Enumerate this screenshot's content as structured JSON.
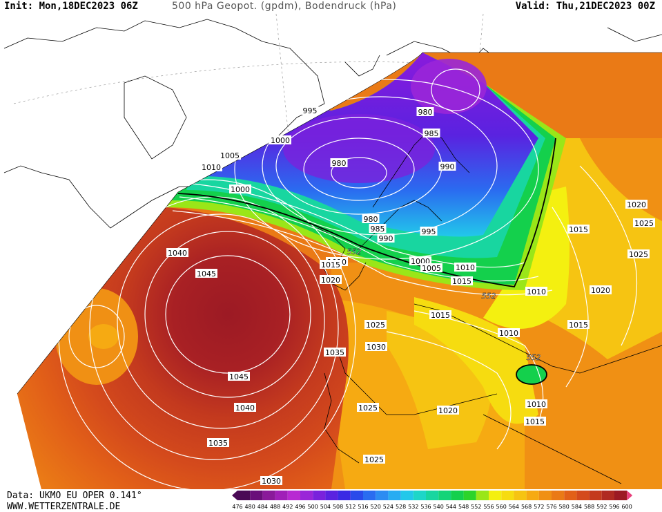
{
  "header": {
    "init": "Init: Mon,18DEC2023 06Z",
    "title": "500 hPa Geopot. (gpdm), Bodendruck (hPa)",
    "valid": "Valid: Thu,21DEC2023 00Z"
  },
  "footer": {
    "data_source": "Data: UKMO EU OPER 0.141°",
    "website": "WWW.WETTERZENTRALE.DE"
  },
  "colorbar": {
    "levels": [
      "476",
      "480",
      "484",
      "488",
      "492",
      "496",
      "500",
      "504",
      "508",
      "512",
      "516",
      "520",
      "524",
      "528",
      "532",
      "536",
      "540",
      "544",
      "548",
      "552",
      "556",
      "560",
      "564",
      "568",
      "572",
      "576",
      "580",
      "584",
      "588",
      "592",
      "596",
      "600"
    ],
    "colors": [
      "#4a0a55",
      "#6a0f7a",
      "#8a1a9a",
      "#a020b8",
      "#b82ad2",
      "#9a26d8",
      "#7a22dc",
      "#5a22e0",
      "#3a2ae4",
      "#2a4aea",
      "#2a6cf0",
      "#2c8cf2",
      "#28acf2",
      "#22c8ea",
      "#1ed6c8",
      "#18d6a0",
      "#14d478",
      "#14d04c",
      "#2cd42a",
      "#9ae618",
      "#f4f010",
      "#f6dc10",
      "#f6c412",
      "#f6aa12",
      "#f09014",
      "#ea7a16",
      "#e26018",
      "#d44a1c",
      "#c43a1e",
      "#b02a22",
      "#9c1a24",
      "#e8407c"
    ]
  },
  "map_labels": {
    "isobars": [
      "995",
      "1000",
      "1005",
      "1010",
      "1000",
      "980",
      "980",
      "985",
      "990",
      "980",
      "985",
      "990",
      "995",
      "1000",
      "1005",
      "1010",
      "1015",
      "1010",
      "1015",
      "1020",
      "1040",
      "1045",
      "1045",
      "1040",
      "1035",
      "1030",
      "1035",
      "1030",
      "1025",
      "1025",
      "1025",
      "1020",
      "1015",
      "1010",
      "1010",
      "1015",
      "1020",
      "1025",
      "1025",
      "1020",
      "1015",
      "1015",
      "1010"
    ],
    "contours_552": [
      "552",
      "552",
      "552"
    ]
  }
}
